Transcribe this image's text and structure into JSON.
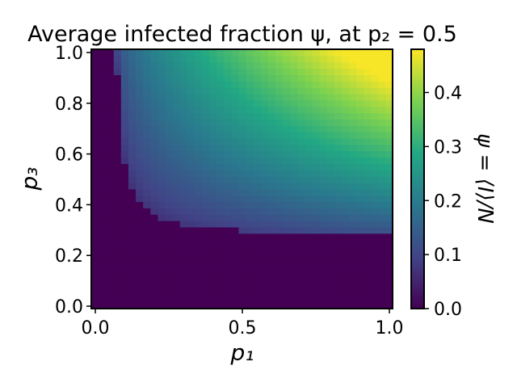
{
  "chart_data": {
    "type": "heatmap",
    "title": "Average infected fraction ψ, at p₂ = 0.5",
    "xlabel": "p₁",
    "ylabel": "p₃",
    "xlim": [
      0.0,
      1.0
    ],
    "ylim": [
      0.0,
      1.0
    ],
    "x_ticks": [
      "0.0",
      "0.5",
      "1.0"
    ],
    "y_ticks": [
      "0.0",
      "0.2",
      "0.4",
      "0.6",
      "0.8",
      "1.0"
    ],
    "grid_resolution": [
      41,
      41
    ],
    "colormap": "viridis",
    "colorbar": {
      "label": "ψ = ⟨I⟩/N",
      "range": [
        0.0,
        0.48
      ],
      "ticks": [
        "0.0",
        "0.1",
        "0.2",
        "0.3",
        "0.4"
      ]
    },
    "color_scale": [
      "#440154",
      "#414487",
      "#2a788e",
      "#22a884",
      "#7ad151",
      "#fde725"
    ],
    "description_points": [
      {
        "p1": 1.0,
        "p3": 1.0,
        "psi": 0.47
      },
      {
        "p1": 0.5,
        "p3": 1.0,
        "psi": 0.35
      },
      {
        "p1": 0.1,
        "p3": 1.0,
        "psi": 0.08
      },
      {
        "p1": 1.0,
        "p3": 0.3,
        "psi": 0.18
      },
      {
        "p1": 0.5,
        "p3": 0.5,
        "psi": 0.22
      },
      {
        "p1": 0.5,
        "p3": 0.2,
        "psi": 0.0
      },
      {
        "p1": 0.0,
        "p3": 0.5,
        "psi": 0.0
      }
    ],
    "grid": false
  }
}
